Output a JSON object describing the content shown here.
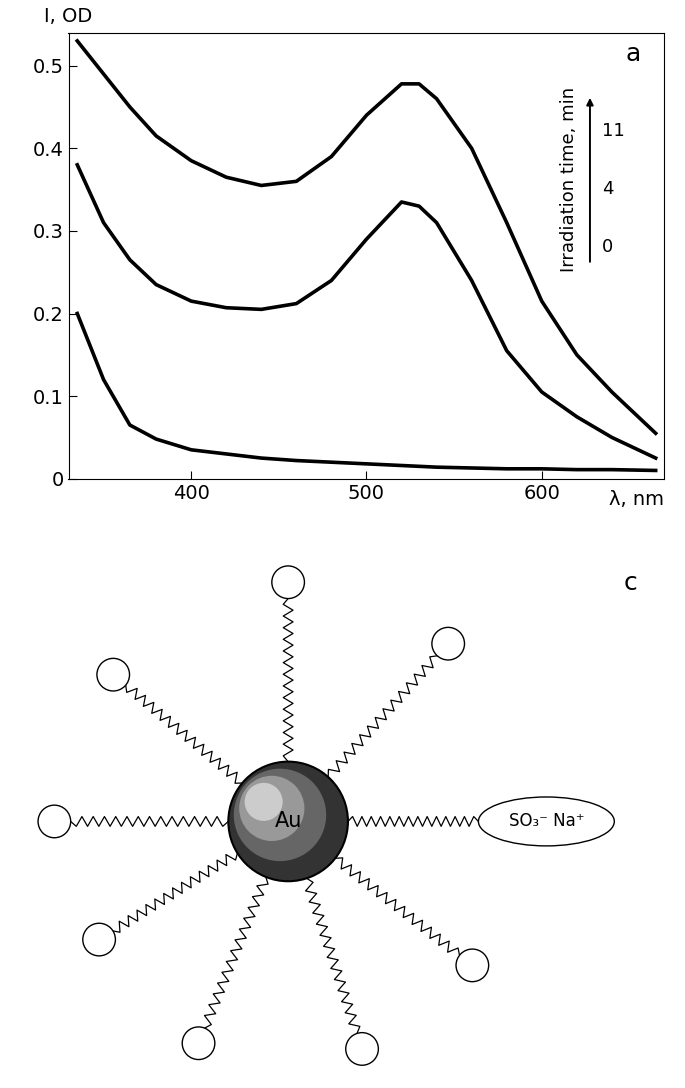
{
  "chart_data": {
    "type": "line",
    "title": "a",
    "x_label": "λ, nm",
    "y_label": "I, OD",
    "annotations": [
      "Irradiation time, min"
    ],
    "x": [
      335,
      350,
      365,
      380,
      400,
      420,
      440,
      460,
      480,
      500,
      520,
      530,
      540,
      560,
      580,
      600,
      620,
      640,
      665
    ],
    "series": [
      {
        "name": "0",
        "color": "#000000",
        "values": [
          0.2,
          0.12,
          0.065,
          0.048,
          0.035,
          0.03,
          0.025,
          0.022,
          0.02,
          0.018,
          0.016,
          0.015,
          0.014,
          0.013,
          0.012,
          0.012,
          0.011,
          0.011,
          0.01
        ]
      },
      {
        "name": "4",
        "color": "#000000",
        "values": [
          0.38,
          0.31,
          0.265,
          0.235,
          0.215,
          0.207,
          0.205,
          0.212,
          0.24,
          0.29,
          0.335,
          0.33,
          0.31,
          0.24,
          0.155,
          0.105,
          0.075,
          0.05,
          0.025
        ]
      },
      {
        "name": "11",
        "color": "#000000",
        "values": [
          0.53,
          0.49,
          0.45,
          0.415,
          0.385,
          0.365,
          0.355,
          0.36,
          0.39,
          0.44,
          0.478,
          0.478,
          0.46,
          0.4,
          0.31,
          0.215,
          0.15,
          0.105,
          0.055
        ]
      }
    ],
    "xlim": [
      330,
      670
    ],
    "ylim": [
      0,
      0.54
    ],
    "xticks": [
      400,
      500,
      600
    ],
    "yticks": [
      0,
      0.1,
      0.2,
      0.3,
      0.4,
      0.5
    ]
  },
  "diagram": {
    "panel_label": "c",
    "core_label": "Au",
    "ligand_end_label": "SO₃⁻ Na⁺"
  }
}
